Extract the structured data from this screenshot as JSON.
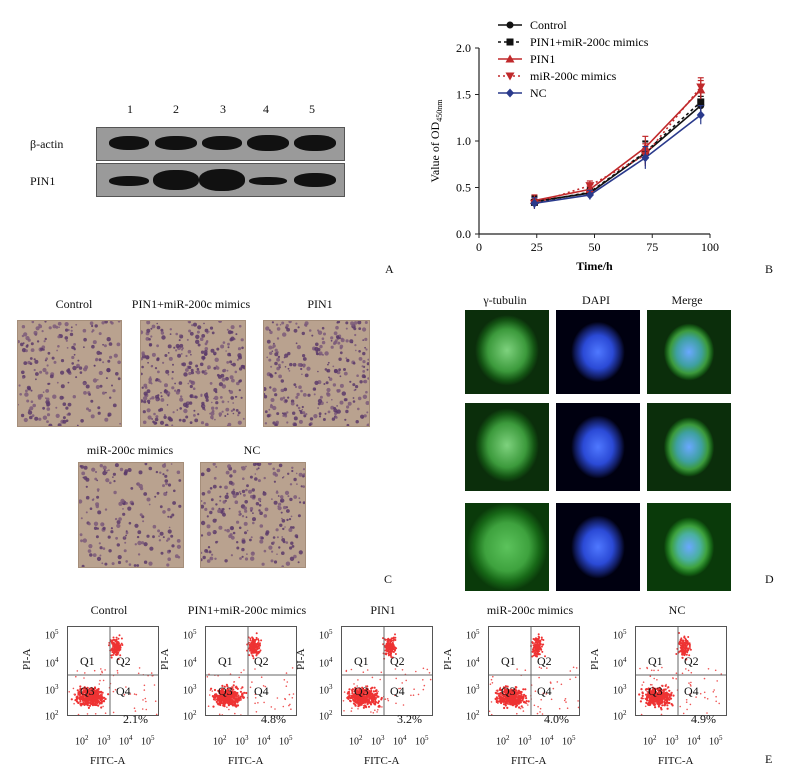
{
  "panel_a": {
    "lanes": [
      "1",
      "2",
      "3",
      "4",
      "5"
    ],
    "rows": [
      "β-actin",
      "PIN1"
    ],
    "letter": "A"
  },
  "panel_b": {
    "letter": "B",
    "xlabel": "Time/h",
    "ylabel_main": "Value of OD",
    "ylabel_sub": "450nm",
    "legend": [
      "Control",
      "PIN1+miR-200c mimics",
      "PIN1",
      "miR-200c mimics",
      "NC"
    ],
    "colors": {
      "Control": "#111111",
      "PIN1+miR-200c mimics": "#111111",
      "PIN1": "#c0292b",
      "miR-200c mimics": "#c0292b",
      "NC": "#2a3a8c"
    }
  },
  "chart_data": {
    "type": "line",
    "title": "",
    "xlabel": "Time/h",
    "ylabel": "Value of OD450nm",
    "x": [
      24,
      48,
      72,
      96
    ],
    "xticks": [
      0,
      25,
      50,
      75,
      100
    ],
    "yticks": [
      0.0,
      0.5,
      1.0,
      1.5,
      2.0
    ],
    "xlim": [
      0,
      100
    ],
    "ylim": [
      0,
      2.0
    ],
    "series": [
      {
        "name": "Control",
        "values": [
          0.35,
          0.44,
          0.87,
          1.38
        ]
      },
      {
        "name": "PIN1+miR-200c mimics",
        "values": [
          0.34,
          0.45,
          0.88,
          1.42
        ]
      },
      {
        "name": "PIN1",
        "values": [
          0.36,
          0.48,
          0.93,
          1.55
        ]
      },
      {
        "name": "miR-200c mimics",
        "values": [
          0.33,
          0.52,
          0.85,
          1.58
        ]
      },
      {
        "name": "NC",
        "values": [
          0.33,
          0.42,
          0.82,
          1.28
        ]
      }
    ]
  },
  "panel_c": {
    "letter": "C",
    "titles": [
      "Control",
      "PIN1+miR-200c mimics",
      "PIN1",
      "miR-200c mimics",
      "NC"
    ]
  },
  "panel_d": {
    "letter": "D",
    "columns": [
      "γ-tubulin",
      "DAPI",
      "Merge"
    ]
  },
  "panel_e": {
    "letter": "E",
    "titles": [
      "Control",
      "PIN1+miR-200c mimics",
      "PIN1",
      "miR-200c mimics",
      "NC"
    ],
    "percents": [
      "2.1%",
      "4.8%",
      "3.2%",
      "4.0%",
      "4.9%"
    ],
    "quadrants": [
      "Q1",
      "Q2",
      "Q3",
      "Q4"
    ],
    "xaxis": "FITC-A",
    "yaxis": "PI-A",
    "ticks_base": "10",
    "ticks_exp": [
      "2",
      "3",
      "4",
      "5"
    ]
  }
}
